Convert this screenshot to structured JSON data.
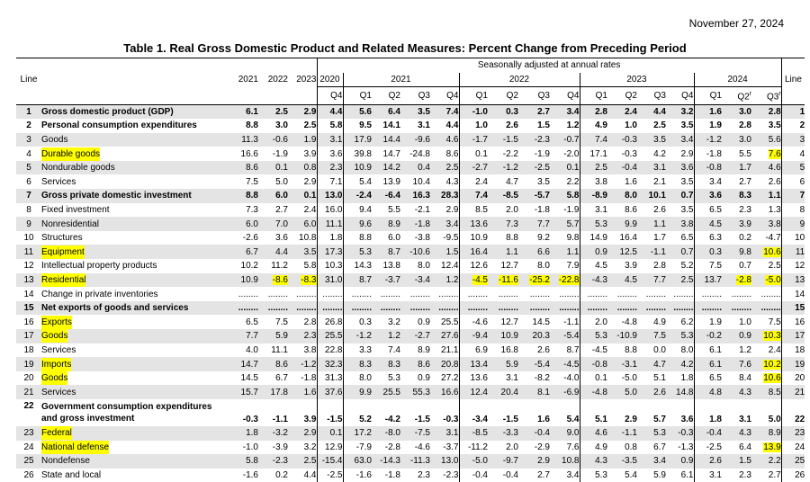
{
  "date": "November 27, 2024",
  "title": "Table 1. Real Gross Domestic Product and Related Measures: Percent Change from Preceding Period",
  "header": {
    "line_label": "Line",
    "line_label_right": "Line",
    "annual_years": [
      "2021",
      "2022",
      "2023"
    ],
    "seasonal_note": "Seasonally adjusted at annual rates",
    "quarter_years": [
      "2020",
      "2021",
      "2022",
      "2023",
      "2024"
    ],
    "quarters": [
      "Q4",
      "Q1",
      "Q2",
      "Q3",
      "Q4",
      "Q1",
      "Q2",
      "Q3",
      "Q4",
      "Q1",
      "Q2",
      "Q3",
      "Q4",
      "Q1",
      "Q2r",
      "Q3r"
    ]
  },
  "highlight_color": "#ffff00",
  "shade_color": "#e4e4e4",
  "rows": [
    {
      "line": "1",
      "label": "Gross domestic product (GDP)",
      "indent": 1,
      "bold": true,
      "shade": true,
      "hl_label": false,
      "values": [
        "6.1",
        "2.5",
        "2.9",
        "4.4",
        "5.6",
        "6.4",
        "3.5",
        "7.4",
        "-1.0",
        "0.3",
        "2.7",
        "3.4",
        "2.8",
        "2.4",
        "4.4",
        "3.2",
        "1.6",
        "3.0",
        "2.8"
      ],
      "hl": []
    },
    {
      "line": "2",
      "label": "Personal consumption expenditures",
      "indent": 0,
      "bold": true,
      "shade": false,
      "hl_label": false,
      "values": [
        "8.8",
        "3.0",
        "2.5",
        "5.8",
        "9.5",
        "14.1",
        "3.1",
        "4.4",
        "1.0",
        "2.6",
        "1.5",
        "1.2",
        "4.9",
        "1.0",
        "2.5",
        "3.5",
        "1.9",
        "2.8",
        "3.5"
      ],
      "hl": []
    },
    {
      "line": "3",
      "label": "Goods",
      "indent": 1,
      "bold": false,
      "shade": true,
      "hl_label": false,
      "values": [
        "11.3",
        "-0.6",
        "1.9",
        "3.1",
        "17.9",
        "14.4",
        "-9.6",
        "4.6",
        "-1.7",
        "-1.5",
        "-2.3",
        "-0.7",
        "7.4",
        "-0.3",
        "3.5",
        "3.4",
        "-1.2",
        "3.0",
        "5.6"
      ],
      "hl": []
    },
    {
      "line": "4",
      "label": "Durable goods",
      "indent": 2,
      "bold": false,
      "shade": false,
      "hl_label": true,
      "values": [
        "16.6",
        "-1.9",
        "3.9",
        "3.6",
        "39.8",
        "14.7",
        "-24.8",
        "8.6",
        "0.1",
        "-2.2",
        "-1.9",
        "-2.0",
        "17.1",
        "-0.3",
        "4.2",
        "2.9",
        "-1.8",
        "5.5",
        "7.6"
      ],
      "hl": [
        18
      ]
    },
    {
      "line": "5",
      "label": "Nondurable goods",
      "indent": 2,
      "bold": false,
      "shade": true,
      "hl_label": false,
      "values": [
        "8.6",
        "0.1",
        "0.8",
        "2.3",
        "10.9",
        "14.2",
        "0.4",
        "2.5",
        "-2.7",
        "-1.2",
        "-2.5",
        "0.1",
        "2.5",
        "-0.4",
        "3.1",
        "3.6",
        "-0.8",
        "1.7",
        "4.6"
      ],
      "hl": []
    },
    {
      "line": "6",
      "label": "Services",
      "indent": 1,
      "bold": false,
      "shade": false,
      "hl_label": false,
      "values": [
        "7.5",
        "5.0",
        "2.9",
        "7.1",
        "5.4",
        "13.9",
        "10.4",
        "4.3",
        "2.4",
        "4.7",
        "3.5",
        "2.2",
        "3.8",
        "1.6",
        "2.1",
        "3.5",
        "3.4",
        "2.7",
        "2.6"
      ],
      "hl": []
    },
    {
      "line": "7",
      "label": "Gross private domestic investment",
      "indent": 0,
      "bold": true,
      "shade": true,
      "hl_label": false,
      "values": [
        "8.8",
        "6.0",
        "0.1",
        "13.0",
        "-2.4",
        "-6.4",
        "16.3",
        "28.3",
        "7.4",
        "-8.5",
        "-5.7",
        "5.8",
        "-8.9",
        "8.0",
        "10.1",
        "0.7",
        "3.6",
        "8.3",
        "1.1"
      ],
      "hl": []
    },
    {
      "line": "8",
      "label": "Fixed investment",
      "indent": 1,
      "bold": false,
      "shade": false,
      "hl_label": false,
      "values": [
        "7.3",
        "2.7",
        "2.4",
        "16.0",
        "9.4",
        "5.5",
        "-2.1",
        "2.9",
        "8.5",
        "2.0",
        "-1.8",
        "-1.9",
        "3.1",
        "8.6",
        "2.6",
        "3.5",
        "6.5",
        "2.3",
        "1.3"
      ],
      "hl": []
    },
    {
      "line": "9",
      "label": "Nonresidential",
      "indent": 2,
      "bold": false,
      "shade": true,
      "hl_label": false,
      "values": [
        "6.0",
        "7.0",
        "6.0",
        "11.1",
        "9.6",
        "8.9",
        "-1.8",
        "3.4",
        "13.6",
        "7.3",
        "7.7",
        "5.7",
        "5.3",
        "9.9",
        "1.1",
        "3.8",
        "4.5",
        "3.9",
        "3.8"
      ],
      "hl": []
    },
    {
      "line": "10",
      "label": "Structures",
      "indent": 3,
      "bold": false,
      "shade": false,
      "hl_label": false,
      "values": [
        "-2.6",
        "3.6",
        "10.8",
        "1.8",
        "8.8",
        "6.0",
        "-3.8",
        "-9.5",
        "10.9",
        "8.8",
        "9.2",
        "9.8",
        "14.9",
        "16.4",
        "1.7",
        "6.5",
        "6.3",
        "0.2",
        "-4.7"
      ],
      "hl": []
    },
    {
      "line": "11",
      "label": "Equipment",
      "indent": 3,
      "bold": false,
      "shade": true,
      "hl_label": true,
      "values": [
        "6.7",
        "4.4",
        "3.5",
        "17.3",
        "5.3",
        "8.7",
        "-10.6",
        "1.5",
        "16.4",
        "1.1",
        "6.6",
        "1.1",
        "0.9",
        "12.5",
        "-1.1",
        "0.7",
        "0.3",
        "9.8",
        "10.6"
      ],
      "hl": [
        18
      ]
    },
    {
      "line": "12",
      "label": "Intellectual property products",
      "indent": 3,
      "bold": false,
      "shade": false,
      "hl_label": false,
      "values": [
        "10.2",
        "11.2",
        "5.8",
        "10.3",
        "14.3",
        "13.8",
        "8.0",
        "12.4",
        "12.6",
        "12.7",
        "8.0",
        "7.9",
        "4.5",
        "3.9",
        "2.8",
        "5.2",
        "7.5",
        "0.7",
        "2.5"
      ],
      "hl": []
    },
    {
      "line": "13",
      "label": "Residential",
      "indent": 2,
      "bold": false,
      "shade": true,
      "hl_label": true,
      "values": [
        "10.9",
        "-8.6",
        "-8.3",
        "31.0",
        "8.7",
        "-3.7",
        "-3.4",
        "1.2",
        "-4.5",
        "-11.6",
        "-25.2",
        "-22.8",
        "-4.3",
        "4.5",
        "7.7",
        "2.5",
        "13.7",
        "-2.8",
        "-5.0"
      ],
      "hl": [
        1,
        2,
        8,
        9,
        10,
        11,
        17,
        18
      ]
    },
    {
      "line": "14",
      "label": "Change in private inventories",
      "indent": 1,
      "bold": false,
      "shade": false,
      "hl_label": false,
      "values": [
        "........",
        "........",
        "........",
        "........",
        "........",
        "........",
        "........",
        "........",
        "........",
        "........",
        "........",
        "........",
        "........",
        "........",
        "........",
        "........",
        "........",
        "........",
        "........"
      ],
      "hl": []
    },
    {
      "line": "15",
      "label": "Net exports of goods and services",
      "indent": 0,
      "bold": true,
      "shade": true,
      "hl_label": false,
      "values": [
        "........",
        "........",
        "........",
        "........",
        "........",
        "........",
        "........",
        "........",
        "........",
        "........",
        "........",
        "........",
        "........",
        "........",
        "........",
        "........",
        "........",
        "........",
        "........"
      ],
      "hl": []
    },
    {
      "line": "16",
      "label": "Exports",
      "indent": 1,
      "bold": false,
      "shade": false,
      "hl_label": true,
      "values": [
        "6.5",
        "7.5",
        "2.8",
        "26.8",
        "0.3",
        "3.2",
        "0.9",
        "25.5",
        "-4.6",
        "12.7",
        "14.5",
        "-1.1",
        "2.0",
        "-4.8",
        "4.9",
        "6.2",
        "1.9",
        "1.0",
        "7.5"
      ],
      "hl": []
    },
    {
      "line": "17",
      "label": "Goods",
      "indent": 2,
      "bold": false,
      "shade": true,
      "hl_label": true,
      "values": [
        "7.7",
        "5.9",
        "2.3",
        "25.5",
        "-1.2",
        "1.2",
        "-2.7",
        "27.6",
        "-9.4",
        "10.9",
        "20.3",
        "-5.4",
        "5.3",
        "-10.9",
        "7.5",
        "5.3",
        "-0.2",
        "0.9",
        "10.3"
      ],
      "hl": [
        18
      ]
    },
    {
      "line": "18",
      "label": "Services",
      "indent": 2,
      "bold": false,
      "shade": false,
      "hl_label": false,
      "values": [
        "4.0",
        "11.1",
        "3.8",
        "22.8",
        "3.3",
        "7.4",
        "8.9",
        "21.1",
        "6.9",
        "16.8",
        "2.6",
        "8.7",
        "-4.5",
        "8.8",
        "0.0",
        "8.0",
        "6.1",
        "1.2",
        "2.4"
      ],
      "hl": []
    },
    {
      "line": "19",
      "label": "Imports",
      "indent": 1,
      "bold": false,
      "shade": true,
      "hl_label": true,
      "values": [
        "14.7",
        "8.6",
        "-1.2",
        "32.3",
        "8.3",
        "8.3",
        "8.6",
        "20.8",
        "13.4",
        "5.9",
        "-5.4",
        "-4.5",
        "-0.8",
        "-3.1",
        "4.7",
        "4.2",
        "6.1",
        "7.6",
        "10.2"
      ],
      "hl": [
        18
      ]
    },
    {
      "line": "20",
      "label": "Goods",
      "indent": 2,
      "bold": false,
      "shade": false,
      "hl_label": true,
      "values": [
        "14.5",
        "6.7",
        "-1.8",
        "31.3",
        "8.0",
        "5.3",
        "0.9",
        "27.2",
        "13.6",
        "3.1",
        "-8.2",
        "-4.0",
        "0.1",
        "-5.0",
        "5.1",
        "1.8",
        "6.5",
        "8.4",
        "10.6"
      ],
      "hl": [
        18
      ]
    },
    {
      "line": "21",
      "label": "Services",
      "indent": 2,
      "bold": false,
      "shade": true,
      "hl_label": false,
      "values": [
        "15.7",
        "17.8",
        "1.6",
        "37.6",
        "9.9",
        "25.5",
        "55.3",
        "16.6",
        "12.4",
        "20.4",
        "8.1",
        "-6.9",
        "-4.8",
        "5.0",
        "2.6",
        "14.8",
        "4.8",
        "4.3",
        "8.5"
      ],
      "hl": []
    },
    {
      "line": "22",
      "label": "Government consumption expenditures and gross investment",
      "indent": 0,
      "bold": true,
      "shade": false,
      "hl_label": false,
      "tall": true,
      "values": [
        "-0.3",
        "-1.1",
        "3.9",
        "-1.5",
        "5.2",
        "-4.2",
        "-1.5",
        "-0.3",
        "-3.4",
        "-1.5",
        "1.6",
        "5.4",
        "5.1",
        "2.9",
        "5.7",
        "3.6",
        "1.8",
        "3.1",
        "5.0"
      ],
      "hl": []
    },
    {
      "line": "23",
      "label": "Federal",
      "indent": 1,
      "bold": false,
      "shade": true,
      "hl_label": true,
      "values": [
        "1.8",
        "-3.2",
        "2.9",
        "0.1",
        "17.2",
        "-8.0",
        "-7.5",
        "3.1",
        "-8.5",
        "-3.3",
        "-0.4",
        "9.0",
        "4.6",
        "-1.1",
        "5.3",
        "-0.3",
        "-0.4",
        "4.3",
        "8.9"
      ],
      "hl": []
    },
    {
      "line": "24",
      "label": "National defense",
      "indent": 2,
      "bold": false,
      "shade": false,
      "hl_label": true,
      "values": [
        "-1.0",
        "-3.9",
        "3.2",
        "12.9",
        "-7.9",
        "-2.8",
        "-4.6",
        "-3.7",
        "-11.2",
        "2.0",
        "-2.9",
        "7.6",
        "4.9",
        "0.8",
        "6.7",
        "-1.3",
        "-2.5",
        "6.4",
        "13.9"
      ],
      "hl": [
        18
      ]
    },
    {
      "line": "25",
      "label": "Nondefense",
      "indent": 2,
      "bold": false,
      "shade": true,
      "hl_label": false,
      "values": [
        "5.8",
        "-2.3",
        "2.5",
        "-15.4",
        "63.0",
        "-14.3",
        "-11.3",
        "13.0",
        "-5.0",
        "-9.7",
        "2.9",
        "10.8",
        "4.3",
        "-3.5",
        "3.4",
        "0.9",
        "2.6",
        "1.5",
        "2.2"
      ],
      "hl": []
    },
    {
      "line": "26",
      "label": "State and local",
      "indent": 1,
      "bold": false,
      "shade": false,
      "hl_label": false,
      "values": [
        "-1.6",
        "0.2",
        "4.4",
        "-2.5",
        "-1.6",
        "-1.8",
        "2.3",
        "-2.3",
        "-0.4",
        "-0.4",
        "2.7",
        "3.4",
        "5.3",
        "5.4",
        "5.9",
        "6.1",
        "3.1",
        "2.3",
        "2.7"
      ],
      "hl": []
    }
  ]
}
